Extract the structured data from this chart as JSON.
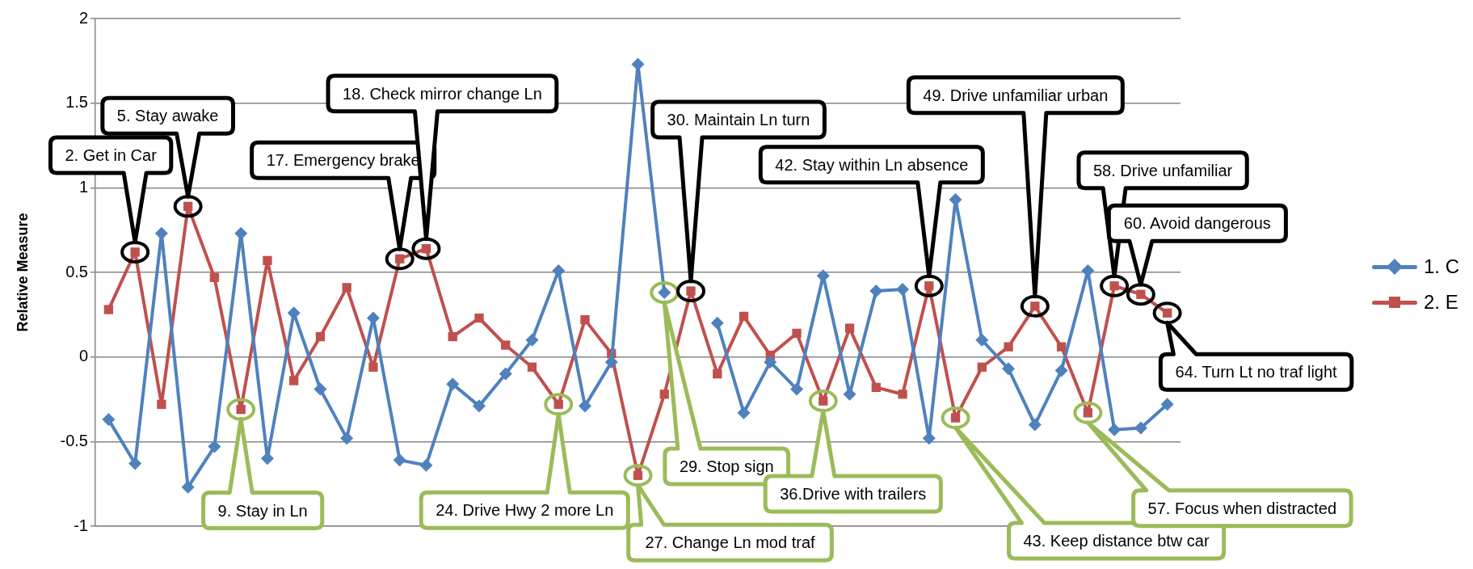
{
  "chart_data": {
    "type": "line",
    "ylabel": "Relative Measure",
    "categories": [
      null,
      null,
      null,
      null,
      null,
      null,
      null,
      null,
      null,
      null,
      null,
      null,
      null,
      null,
      null,
      null,
      null,
      null,
      null,
      null,
      null,
      null,
      null,
      null,
      null,
      null,
      null,
      null,
      null,
      null,
      null,
      null,
      null,
      null,
      null,
      null,
      null,
      null,
      null,
      null,
      null
    ],
    "series": [
      {
        "name": "1. C",
        "color": "#4f81bd",
        "marker": "diamond",
        "values": [
          -0.37,
          -0.63,
          0.73,
          -0.77,
          -0.53,
          0.73,
          -0.6,
          0.26,
          -0.19,
          -0.48,
          0.23,
          -0.61,
          -0.64,
          -0.16,
          -0.29,
          -0.1,
          0.1,
          0.51,
          -0.29,
          -0.03,
          1.73,
          0.38,
          null,
          0.2,
          -0.33,
          -0.03,
          -0.19,
          0.48,
          -0.22,
          0.39,
          0.4,
          -0.48,
          0.93,
          0.1,
          -0.07,
          -0.4,
          -0.08,
          0.51,
          -0.43,
          -0.42,
          -0.28
        ]
      },
      {
        "name": "2. E",
        "color": "#c0504d",
        "marker": "square",
        "values": [
          0.28,
          0.62,
          -0.28,
          0.89,
          0.47,
          -0.31,
          0.57,
          -0.14,
          0.12,
          0.41,
          -0.06,
          0.58,
          0.64,
          0.12,
          0.23,
          0.07,
          -0.06,
          -0.28,
          0.22,
          0.02,
          -0.7,
          -0.22,
          0.39,
          -0.1,
          0.24,
          0.01,
          0.14,
          -0.26,
          0.17,
          -0.18,
          -0.22,
          0.42,
          -0.36,
          -0.06,
          0.06,
          0.3,
          0.06,
          -0.33,
          0.42,
          0.37,
          0.26
        ]
      }
    ],
    "ylim": [
      -1,
      2
    ],
    "yticks": [
      -1,
      -0.5,
      0,
      0.5,
      1,
      1.5,
      2
    ],
    "grid": "y",
    "legend": "right",
    "tick_labels": "y",
    "annotations": [
      "2. Get in Car",
      "5. Stay awake",
      "9. Stay in Ln",
      "17. Emergency brake",
      "18. Check mirror change Ln",
      "24. Drive Hwy 2 more Ln",
      "27.  Change Ln mod traf",
      "29. Stop sign",
      "30. Maintain Ln turn",
      "36.Drive with trailers",
      "42. Stay within Ln absence",
      "43. Keep distance btw car",
      "49. Drive unfamiliar urban",
      "57. Focus when distracted",
      "58. Drive unfamiliar",
      "60. Avoid dangerous",
      "64. Turn Lt no traf light"
    ]
  }
}
